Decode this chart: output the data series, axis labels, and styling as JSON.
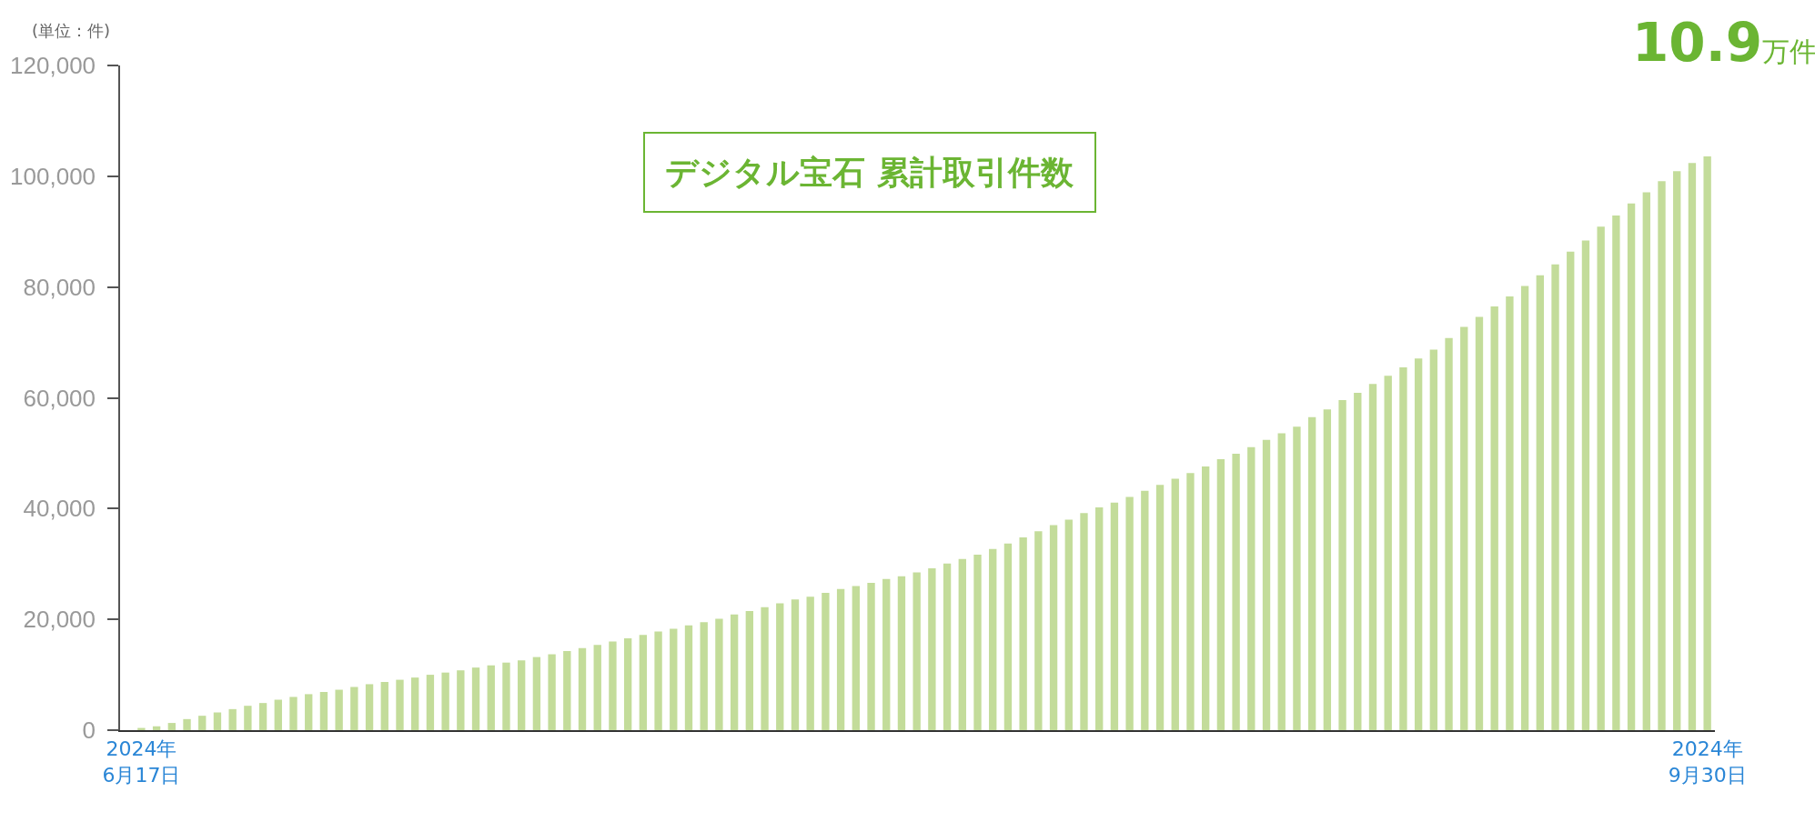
{
  "chart_data": {
    "type": "bar",
    "title": "デジタル宝石 累計取引件数",
    "ylabel": "(単位：件)",
    "annotations": [
      "10.9万件"
    ],
    "categories": [
      "2024年\n6月17日",
      null,
      null,
      null,
      null,
      null,
      null,
      null,
      null,
      null,
      null,
      null,
      null,
      null,
      null,
      null,
      null,
      null,
      null,
      null,
      null,
      null,
      null,
      null,
      null,
      null,
      null,
      null,
      null,
      null,
      null,
      null,
      null,
      null,
      null,
      null,
      null,
      null,
      null,
      null,
      null,
      null,
      null,
      null,
      null,
      null,
      null,
      null,
      null,
      null,
      null,
      null,
      null,
      null,
      null,
      null,
      null,
      null,
      null,
      null,
      null,
      null,
      null,
      null,
      null,
      null,
      null,
      null,
      null,
      null,
      null,
      null,
      null,
      null,
      null,
      null,
      null,
      null,
      null,
      null,
      null,
      null,
      null,
      null,
      null,
      null,
      null,
      null,
      null,
      null,
      null,
      null,
      null,
      null,
      null,
      null,
      null,
      null,
      null,
      null,
      null,
      null,
      null,
      "2024年\n9月30日"
    ],
    "values": [
      400,
      700,
      1300,
      2000,
      2600,
      3200,
      3800,
      4400,
      4900,
      5500,
      6000,
      6500,
      6900,
      7300,
      7800,
      8300,
      8700,
      9100,
      9500,
      10000,
      10400,
      10800,
      11300,
      11700,
      12200,
      12600,
      13200,
      13700,
      14300,
      14800,
      15400,
      16000,
      16600,
      17200,
      17800,
      18300,
      18900,
      19500,
      20100,
      20900,
      21500,
      22200,
      22900,
      23600,
      24100,
      24800,
      25500,
      26000,
      26600,
      27300,
      27800,
      28500,
      29200,
      30100,
      30900,
      31700,
      32700,
      33700,
      34800,
      35900,
      37000,
      38000,
      39200,
      40200,
      41100,
      42100,
      43200,
      44300,
      45400,
      46400,
      47600,
      48900,
      49900,
      51100,
      52400,
      53600,
      54800,
      56500,
      57900,
      59600,
      60900,
      62500,
      64000,
      65500,
      67100,
      68700,
      70800,
      72800,
      74600,
      76500,
      78300,
      80200,
      82100,
      84100,
      86400,
      88400,
      90900,
      92900,
      95100,
      97100,
      99100,
      100900,
      102400,
      103600
    ],
    "color": "#c3dc9a",
    "ylim": [
      0,
      120000
    ],
    "yticks": [
      {
        "value": 0,
        "label": "0"
      },
      {
        "value": 20000,
        "label": "20,000"
      },
      {
        "value": 40000,
        "label": "40,000"
      },
      {
        "value": 60000,
        "label": "60,000"
      },
      {
        "value": 80000,
        "label": "80,000"
      },
      {
        "value": 100000,
        "label": "100,000"
      },
      {
        "value": 120000,
        "label": "120,000"
      }
    ],
    "grid": false
  }
}
